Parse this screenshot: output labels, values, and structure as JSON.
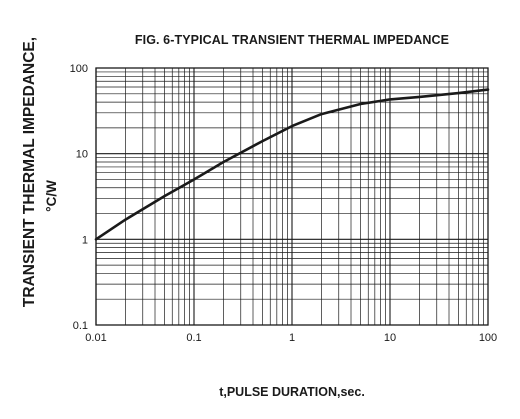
{
  "chart_data": {
    "type": "line",
    "title": "FIG. 6-TYPICAL TRANSIENT THERMAL IMPEDANCE",
    "xlabel": "t,PULSE DURATION,sec.",
    "ylabel": "TRANSIENT THERMAL IMPEDANCE,",
    "ylabel_unit": "°C/W",
    "x_scale": "log",
    "y_scale": "log",
    "xlim": [
      0.01,
      100
    ],
    "ylim": [
      0.1,
      100
    ],
    "grid": true,
    "x_ticks": [
      {
        "value": 0.01,
        "label": "0.01"
      },
      {
        "value": 0.1,
        "label": "0.1"
      },
      {
        "value": 1,
        "label": "1"
      },
      {
        "value": 10,
        "label": "10"
      },
      {
        "value": 100,
        "label": "100"
      }
    ],
    "y_ticks": [
      {
        "value": 0.1,
        "label": "0.1"
      },
      {
        "value": 1,
        "label": "1"
      },
      {
        "value": 10,
        "label": "10"
      },
      {
        "value": 100,
        "label": "100"
      }
    ],
    "series": [
      {
        "x": [
          0.01,
          0.02,
          0.05,
          0.1,
          0.2,
          0.5,
          1,
          2,
          5,
          10,
          20,
          50,
          100
        ],
        "y": [
          1.0,
          1.7,
          3.2,
          5.0,
          8.0,
          14,
          21,
          29,
          38,
          43,
          46,
          51,
          56
        ]
      }
    ],
    "colors": {
      "line": "#1a1a1a",
      "grid": "#1a1a1a"
    }
  }
}
